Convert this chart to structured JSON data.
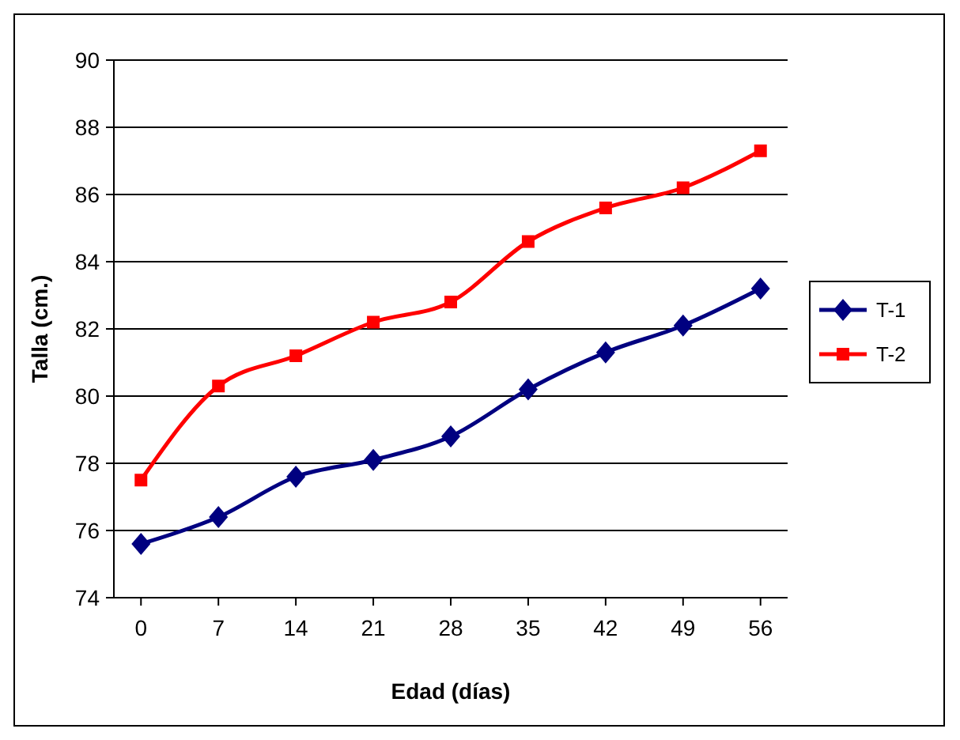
{
  "chart_data": {
    "type": "line",
    "xlabel": "Edad (días)",
    "ylabel": "Talla (cm.)",
    "categories": [
      "0",
      "7",
      "14",
      "21",
      "28",
      "35",
      "42",
      "49",
      "56"
    ],
    "series": [
      {
        "name": "T-1",
        "color": "#000080",
        "marker": "diamond",
        "values": [
          75.6,
          76.4,
          77.6,
          78.1,
          78.8,
          80.2,
          81.3,
          82.1,
          83.2
        ]
      },
      {
        "name": "T-2",
        "color": "#ff0000",
        "marker": "square",
        "values": [
          77.5,
          80.3,
          81.2,
          82.2,
          82.8,
          84.6,
          85.6,
          86.2,
          87.3
        ]
      }
    ],
    "ylim": [
      74,
      90
    ],
    "yticks": [
      74,
      76,
      78,
      80,
      82,
      84,
      86,
      88,
      90
    ],
    "grid": "y",
    "legend": "right"
  }
}
